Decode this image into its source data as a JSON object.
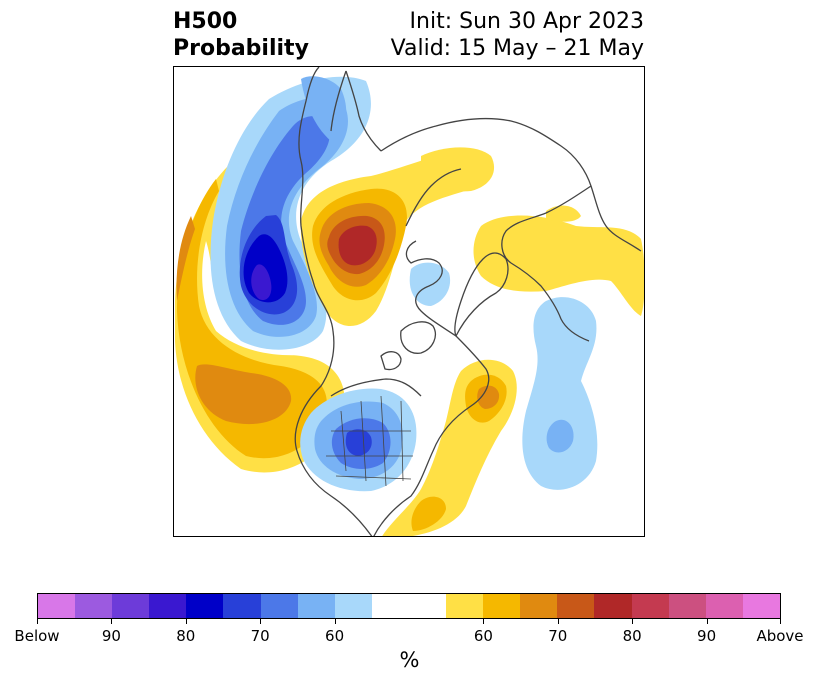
{
  "header": {
    "variable": "H500",
    "product": "Probability",
    "init": "Init: Sun 30 Apr 2023",
    "valid": "Valid: 15 May – 21 May"
  },
  "map": {
    "projection": "polar stereographic (north)",
    "coastline_color": "#444444",
    "anomalies": [
      {
        "region": "Gulf of Alaska / NE Pacific",
        "sign": "below",
        "peak_category": "90"
      },
      {
        "region": "Central North Pacific",
        "sign": "above",
        "peak_category": "70"
      },
      {
        "region": "Northern Siberia / Laptev Sea",
        "sign": "above",
        "peak_category": "80"
      },
      {
        "region": "Central/Western United States",
        "sign": "below",
        "peak_category": "80"
      },
      {
        "region": "Eastern Canada / Hudson Bay",
        "sign": "above",
        "peak_category": "70"
      },
      {
        "region": "Eastern United States",
        "sign": "above",
        "peak_category": "60"
      },
      {
        "region": "Central North Atlantic",
        "sign": "below",
        "peak_category": "70"
      },
      {
        "region": "Northern Europe / Scandinavia",
        "sign": "above",
        "peak_category": "60"
      },
      {
        "region": "Barents Sea",
        "sign": "below",
        "peak_category": "60"
      }
    ]
  },
  "colorbar": {
    "colors": [
      "#d877e8",
      "#9c5ae0",
      "#6d3bd9",
      "#3a18d0",
      "#0000c8",
      "#2840d8",
      "#4c78e8",
      "#78b2f4",
      "#a8d8fa",
      "#ffffff",
      "#ffffff",
      "#ffe045",
      "#f5b800",
      "#e08a10",
      "#c85818",
      "#b02828",
      "#c43a50",
      "#cc5080",
      "#dc60b0",
      "#e878e0"
    ],
    "tick_labels": [
      "Below",
      "90",
      "80",
      "70",
      "60",
      "60",
      "70",
      "80",
      "90",
      "Above"
    ],
    "unit": "%"
  }
}
